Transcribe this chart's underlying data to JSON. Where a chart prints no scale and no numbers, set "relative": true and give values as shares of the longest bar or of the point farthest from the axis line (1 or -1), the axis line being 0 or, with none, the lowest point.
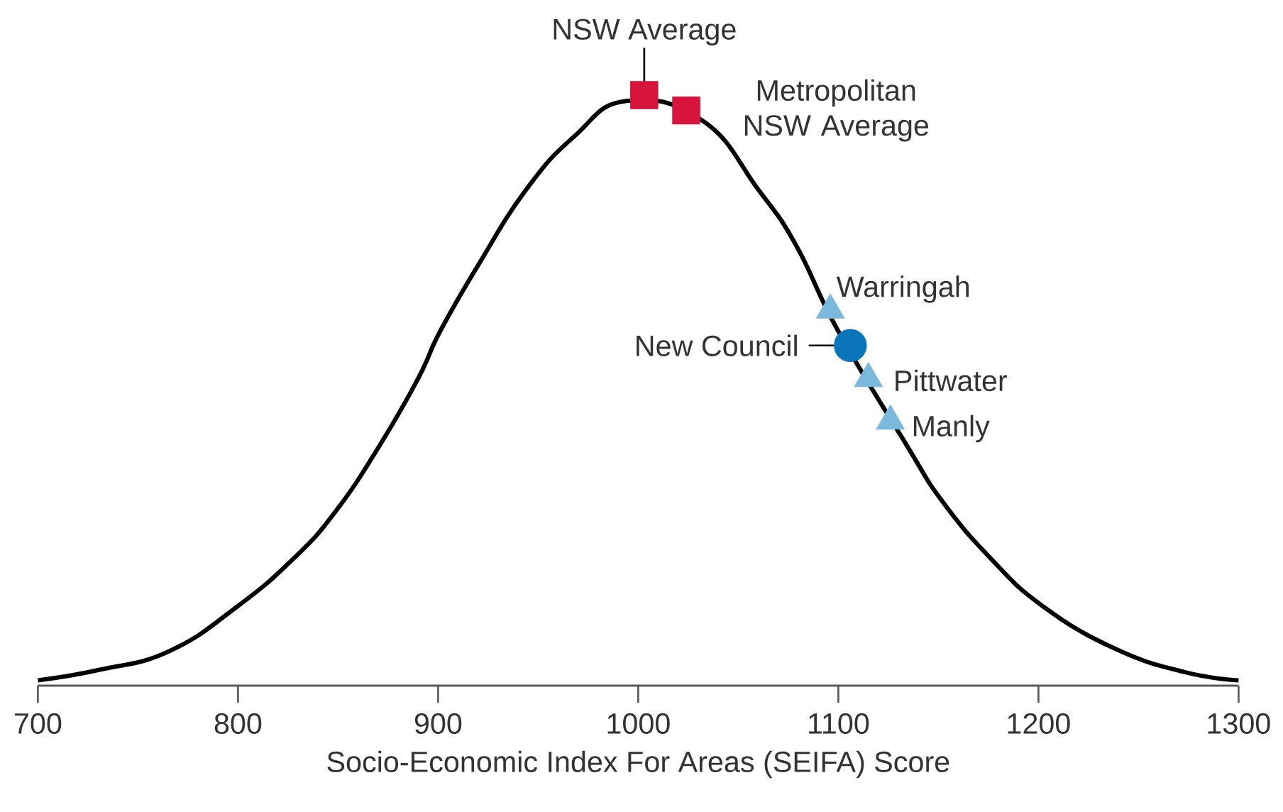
{
  "chart_data": {
    "type": "line",
    "relative": true,
    "xlabel": "Socio-Economic Index For Areas (SEIFA) Score",
    "xlim": [
      700,
      1300
    ],
    "xticks": [
      700,
      800,
      900,
      1000,
      1100,
      1200,
      1300
    ],
    "series": [
      {
        "color": "#000000",
        "x": [
          700,
          731,
          766,
          800,
          828,
          849,
          871,
          890,
          901,
          920,
          944,
          968,
          994,
          1032,
          1060,
          1079,
          1100,
          1134,
          1152,
          1176,
          1202,
          1238,
          1273,
          1300
        ],
        "values": [
          0.009,
          0.027,
          0.059,
          0.135,
          0.216,
          0.296,
          0.408,
          0.52,
          0.6,
          0.712,
          0.84,
          0.93,
          0.99,
          0.957,
          0.84,
          0.745,
          0.6,
          0.408,
          0.312,
          0.216,
          0.135,
          0.063,
          0.023,
          0.009
        ]
      },
      {
        "type": "scatter",
        "name": "NSW Average",
        "color": "#d7143c",
        "marker": "square",
        "x": [
          1003
        ],
        "values": [
          1.0
        ]
      },
      {
        "type": "scatter",
        "name": "Metropolitan NSW Average",
        "color": "#d7143c",
        "marker": "square",
        "x": [
          1024
        ],
        "values": [
          0.974
        ]
      },
      {
        "type": "scatter",
        "name": "Warringah",
        "color": "#7ab8dc",
        "marker": "triangle",
        "x": [
          1096
        ],
        "values": [
          0.636
        ]
      },
      {
        "type": "scatter",
        "name": "New Council",
        "color": "#0a75b8",
        "marker": "circle",
        "x": [
          1106
        ],
        "values": [
          0.576
        ]
      },
      {
        "type": "scatter",
        "name": "Pittwater",
        "color": "#7ab8dc",
        "marker": "triangle",
        "x": [
          1115
        ],
        "values": [
          0.52
        ]
      },
      {
        "type": "scatter",
        "name": "Manly",
        "color": "#7ab8dc",
        "marker": "triangle",
        "x": [
          1126
        ],
        "values": [
          0.448
        ]
      }
    ]
  }
}
